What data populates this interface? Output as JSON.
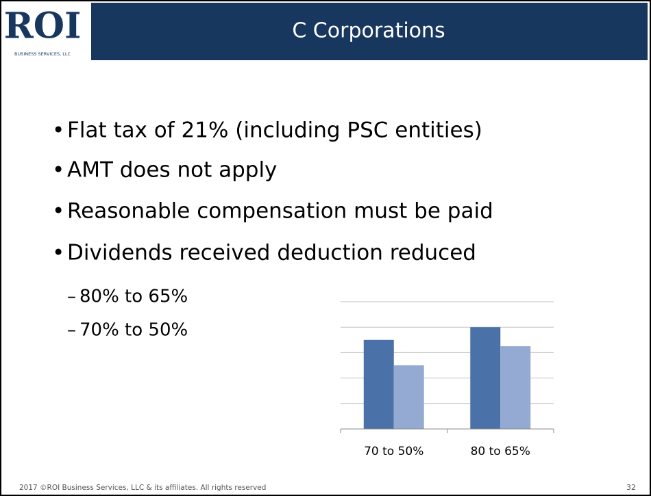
{
  "header": {
    "logo": "ROI",
    "logo_subtitle": "BUSINESS SERVICES, LLC",
    "title": "C Corporations"
  },
  "bullets": [
    "Flat tax of 21% (including PSC entities)",
    "AMT does not apply",
    "Reasonable compensation must be paid",
    "Dividends received deduction reduced"
  ],
  "sub_bullets": [
    "80% to 65%",
    "70% to 50%"
  ],
  "chart_data": {
    "type": "bar",
    "categories": [
      "70 to 50%",
      "80 to 65%"
    ],
    "series": [
      {
        "color": "#4a72a8",
        "values": [
          70,
          80
        ]
      },
      {
        "color": "#95aad3",
        "values": [
          50,
          65
        ]
      }
    ],
    "ylim": [
      0,
      100
    ],
    "yticks": [
      0,
      20,
      40,
      60,
      80,
      100
    ],
    "grid": true
  },
  "footer": {
    "text": "2017 ©ROI Business Services, LLC & its affiliates.  All rights reserved",
    "page": "32"
  }
}
